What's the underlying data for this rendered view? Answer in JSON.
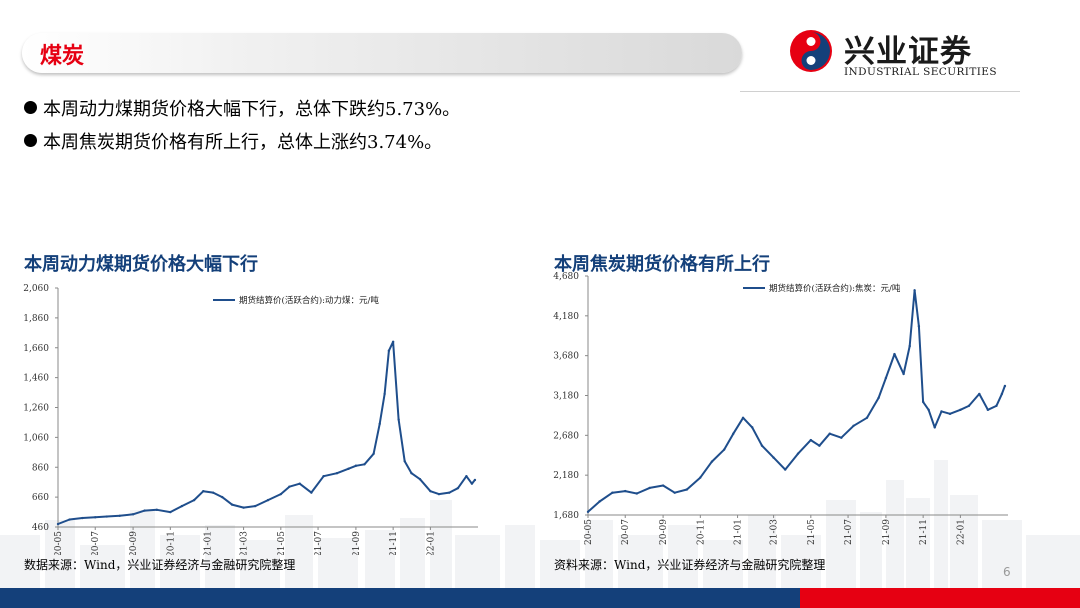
{
  "header": {
    "section_title": "煤炭",
    "logo_cn": "兴业证券",
    "logo_en": "INDUSTRIAL SECURITIES"
  },
  "bullets": [
    "本周动力煤期货价格大幅下行，总体下跌约5.73%。",
    "本周焦炭期货价格有所上行，总体上涨约3.74%。"
  ],
  "colors": {
    "brand_red": "#e60012",
    "brand_blue": "#14407a",
    "line": "#1f4e8c"
  },
  "page_number": "6",
  "chart_data": [
    {
      "type": "line",
      "title": "本周动力煤期货价格大幅下行",
      "source": "数据来源：Wind，兴业证券经济与金融研究院整理",
      "ylim": [
        460,
        2060
      ],
      "yticks": [
        "460",
        "660",
        "860",
        "1,060",
        "1,260",
        "1,460",
        "1,660",
        "1,860",
        "2,060"
      ],
      "xticks": [
        "20-05",
        "20-07",
        "20-09",
        "20-11",
        "21-01",
        "21-03",
        "21-05",
        "21-07",
        "21-09",
        "21-11",
        "22-01"
      ],
      "legend_position": "top-center",
      "series": [
        {
          "name": "期货结算价(活跃合约):动力煤：元/吨",
          "x": [
            "2020-05-01",
            "2020-05-20",
            "2020-06-10",
            "2020-07-01",
            "2020-07-20",
            "2020-08-10",
            "2020-09-01",
            "2020-09-20",
            "2020-10-10",
            "2020-11-01",
            "2020-11-20",
            "2020-12-10",
            "2020-12-25",
            "2021-01-10",
            "2021-01-25",
            "2021-02-10",
            "2021-03-01",
            "2021-03-20",
            "2021-04-10",
            "2021-05-01",
            "2021-05-15",
            "2021-06-01",
            "2021-06-20",
            "2021-07-10",
            "2021-08-01",
            "2021-08-20",
            "2021-09-01",
            "2021-09-15",
            "2021-09-30",
            "2021-10-10",
            "2021-10-18",
            "2021-10-25",
            "2021-11-01",
            "2021-11-10",
            "2021-11-20",
            "2021-12-01",
            "2021-12-15",
            "2022-01-01",
            "2022-01-15",
            "2022-02-01",
            "2022-02-15",
            "2022-03-01",
            "2022-03-10",
            "2022-03-15"
          ],
          "values": [
            480,
            510,
            520,
            525,
            530,
            535,
            545,
            570,
            575,
            560,
            600,
            640,
            700,
            690,
            660,
            610,
            590,
            600,
            640,
            680,
            730,
            750,
            690,
            800,
            820,
            850,
            870,
            880,
            950,
            1150,
            1350,
            1640,
            1700,
            1180,
            900,
            820,
            780,
            700,
            680,
            690,
            720,
            800,
            750,
            775
          ]
        }
      ]
    },
    {
      "type": "line",
      "title": "本周焦炭期货价格有所上行",
      "source": "资料来源：Wind，兴业证券经济与金融研究院整理",
      "ylim": [
        1680,
        4680
      ],
      "yticks": [
        "1,680",
        "2,180",
        "2,680",
        "3,180",
        "3,680",
        "4,180",
        "4,680"
      ],
      "xticks": [
        "20-05",
        "20-07",
        "20-09",
        "20-11",
        "21-01",
        "21-03",
        "21-05",
        "21-07",
        "21-09",
        "21-11",
        "22-01"
      ],
      "legend_position": "top-center",
      "series": [
        {
          "name": "期货结算价(活跃合约):焦炭：元/吨",
          "x": [
            "2020-05-01",
            "2020-05-20",
            "2020-06-10",
            "2020-07-01",
            "2020-07-20",
            "2020-08-10",
            "2020-09-01",
            "2020-09-20",
            "2020-10-10",
            "2020-11-01",
            "2020-11-20",
            "2020-12-10",
            "2020-12-25",
            "2021-01-10",
            "2021-01-25",
            "2021-02-10",
            "2021-03-01",
            "2021-03-20",
            "2021-04-10",
            "2021-05-01",
            "2021-05-15",
            "2021-06-01",
            "2021-06-20",
            "2021-07-10",
            "2021-08-01",
            "2021-08-20",
            "2021-09-01",
            "2021-09-15",
            "2021-09-30",
            "2021-10-10",
            "2021-10-18",
            "2021-10-25",
            "2021-11-01",
            "2021-11-10",
            "2021-11-20",
            "2021-12-01",
            "2021-12-15",
            "2022-01-01",
            "2022-01-15",
            "2022-02-01",
            "2022-02-15",
            "2022-03-01",
            "2022-03-10",
            "2022-03-15"
          ],
          "values": [
            1720,
            1850,
            1960,
            1980,
            1950,
            2020,
            2050,
            1960,
            2000,
            2150,
            2350,
            2500,
            2700,
            2900,
            2780,
            2550,
            2400,
            2250,
            2450,
            2620,
            2550,
            2700,
            2650,
            2800,
            2900,
            3150,
            3400,
            3700,
            3450,
            3800,
            4500,
            4050,
            3100,
            3000,
            2780,
            2980,
            2950,
            3000,
            3050,
            3200,
            3000,
            3050,
            3200,
            3300
          ]
        }
      ]
    }
  ]
}
